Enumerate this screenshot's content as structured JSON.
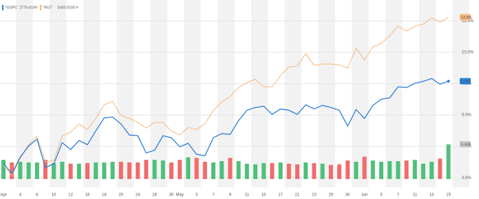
{
  "chart_data": {
    "type": "line",
    "categories": [
      "Apr",
      null,
      "4",
      null,
      "6",
      null,
      "10",
      null,
      "12",
      null,
      "16",
      null,
      "18",
      null,
      "20",
      null,
      "24",
      null,
      "26",
      null,
      "30",
      "May",
      null,
      "3",
      null,
      "7",
      null,
      "9",
      null,
      "11",
      null,
      "15",
      null,
      "17",
      null,
      "21",
      null,
      "23",
      null,
      "25",
      null,
      "30",
      null,
      "Jun",
      null,
      "5",
      null,
      "7",
      null,
      "11",
      null,
      "13",
      null,
      "15"
    ],
    "series": [
      {
        "name": "^GSPC",
        "legend_value": "2779.4199",
        "color": "#2b7fd6",
        "label": "7.7%",
        "values": [
          1.15,
          0.33,
          1.65,
          2.53,
          3.08,
          0.82,
          1.1,
          2.8,
          2.25,
          2.97,
          2.64,
          3.74,
          4.78,
          4.84,
          4.29,
          3.41,
          3.35,
          1.98,
          2.2,
          3.35,
          3.19,
          2.47,
          2.75,
          1.87,
          1.76,
          3.19,
          3.52,
          3.46,
          4.56,
          5.38,
          5.6,
          5.71,
          5.05,
          5.49,
          5.38,
          5.05,
          5.82,
          5.49,
          5.77,
          5.6,
          5.38,
          4.12,
          5.44,
          4.73,
          5.77,
          6.26,
          6.37,
          7.25,
          7.2,
          7.53,
          7.69,
          7.91,
          7.47,
          7.7
        ]
      },
      {
        "name": "^RUT",
        "legend_value": "1683.9100",
        "color": "#f6b77c",
        "label": "12.8%",
        "values": [
          0.99,
          0.16,
          1.54,
          2.64,
          3.3,
          1.26,
          1.37,
          3.35,
          3.63,
          4.29,
          3.85,
          4.73,
          5.82,
          6.1,
          4.95,
          4.73,
          4.4,
          3.96,
          4.4,
          4.4,
          3.74,
          3.41,
          4.01,
          3.85,
          4.29,
          5.38,
          6.04,
          6.48,
          7.2,
          7.58,
          7.86,
          7.25,
          7.25,
          8.13,
          8.85,
          8.9,
          9.89,
          8.96,
          9.07,
          9.07,
          9.01,
          8.74,
          10.33,
          9.4,
          10.44,
          10.71,
          11.32,
          12.09,
          11.7,
          12.09,
          12.25,
          12.75,
          12.42,
          12.8
        ]
      }
    ],
    "volume": {
      "up_color": "#4fbf7a",
      "down_color": "#f26b6b",
      "label": "5.43B",
      "values": [
        3.0,
        2.6,
        2.7,
        2.6,
        2.6,
        3.0,
        2.5,
        2.7,
        2.4,
        2.4,
        2.5,
        2.6,
        2.6,
        2.7,
        2.7,
        2.6,
        2.6,
        3.0,
        3.0,
        2.9,
        2.6,
        3.0,
        3.4,
        3.3,
        2.7,
        2.6,
        2.8,
        3.3,
        2.8,
        2.4,
        2.3,
        2.5,
        2.5,
        2.6,
        2.4,
        2.3,
        2.6,
        2.5,
        2.4,
        2.2,
        2.3,
        2.9,
        2.7,
        3.5,
        2.9,
        2.7,
        2.8,
        2.8,
        2.9,
        3.0,
        2.4,
        2.7,
        3.2,
        5.43
      ]
    },
    "ylim": [
      -0.1,
      13.9
    ],
    "y2lim": [
      0,
      27.5
    ],
    "yticks": [
      {
        "value": 0,
        "label": "0.0%"
      },
      {
        "value": 2.5,
        "label": "2.5%"
      },
      {
        "value": 5,
        "label": "5.0%"
      },
      {
        "value": 7.5,
        "label": "7.5%"
      },
      {
        "value": 10,
        "label": "10.0%"
      },
      {
        "value": 12.5,
        "label": "12.5%"
      }
    ],
    "grid": true
  }
}
